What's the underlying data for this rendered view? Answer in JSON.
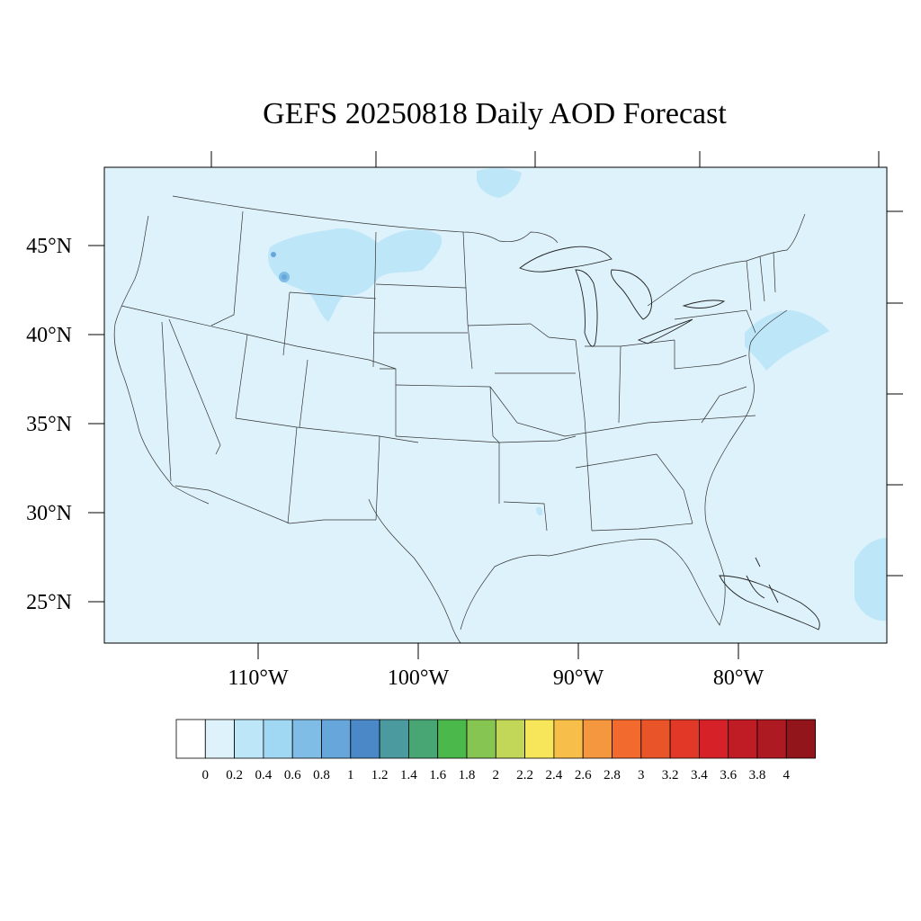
{
  "title": "GEFS 20250818 Daily AOD Forecast",
  "map": {
    "background_color": "#ddf2fb",
    "lon_labels": [
      "110°W",
      "100°W",
      "90°W",
      "80°W"
    ],
    "lat_labels": [
      "45°N",
      "40°N",
      "35°N",
      "30°N",
      "25°N"
    ]
  },
  "colorbar": {
    "colors": [
      "#ffffff",
      "#ddf2fb",
      "#bde6f8",
      "#a0d8f3",
      "#80bde6",
      "#67a6db",
      "#4a88c7",
      "#4a9aa0",
      "#48a574",
      "#4ab84a",
      "#86c552",
      "#c2d657",
      "#f7e659",
      "#f7bf4a",
      "#f5973f",
      "#f26a2d",
      "#e95428",
      "#e13827",
      "#d62129",
      "#bf1c25",
      "#ae1a22",
      "#92151b"
    ],
    "labels": [
      "0",
      "0.2",
      "0.4",
      "0.6",
      "0.8",
      "1",
      "1.2",
      "1.4",
      "1.6",
      "1.8",
      "2",
      "2.2",
      "2.4",
      "2.6",
      "2.8",
      "3",
      "3.2",
      "3.4",
      "3.6",
      "3.8",
      "4"
    ]
  }
}
